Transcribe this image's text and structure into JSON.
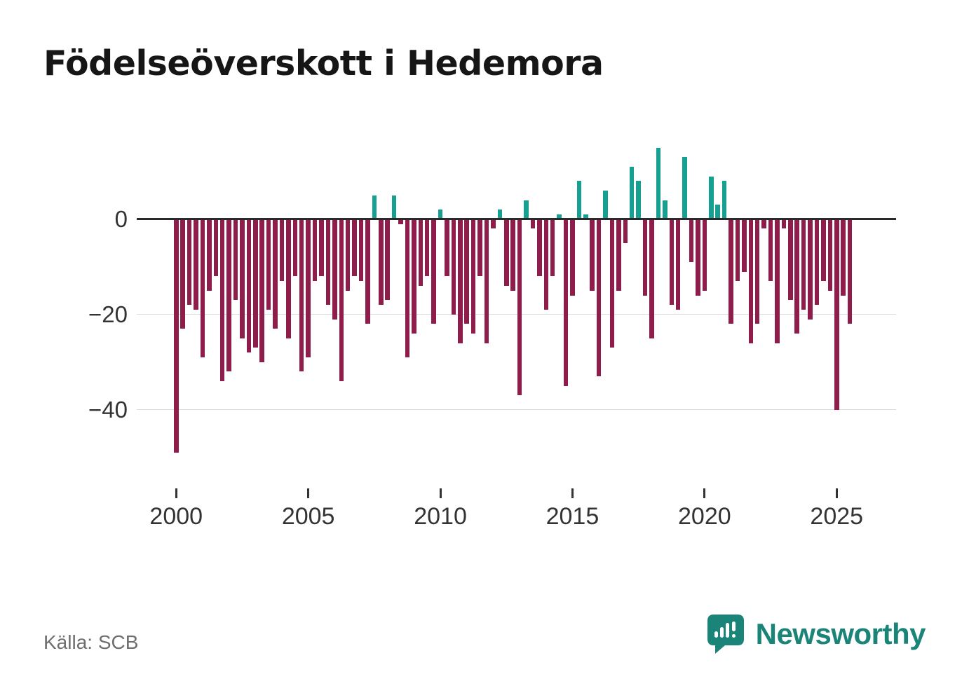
{
  "title": "Födelseöverskott i Hedemora",
  "source": "Källa: SCB",
  "brand": {
    "name": "Newsworthy",
    "color": "#1b8478"
  },
  "chart_data": {
    "type": "bar",
    "title": "Födelseöverskott i Hedemora",
    "frequency": "quarterly",
    "x_start_year": 2000,
    "x_start_quarter": 1,
    "values": [
      -49,
      -23,
      -18,
      -19,
      -29,
      -15,
      -12,
      -34,
      -32,
      -17,
      -25,
      -28,
      -27,
      -30,
      -19,
      -23,
      -13,
      -25,
      -12,
      -32,
      -29,
      -13,
      -12,
      -18,
      -21,
      -34,
      -15,
      -12,
      -13,
      -22,
      5,
      -18,
      -17,
      5,
      -1,
      -29,
      -24,
      -14,
      -12,
      -22,
      2,
      -12,
      -20,
      -26,
      -22,
      -24,
      -12,
      -26,
      -2,
      2,
      -14,
      -15,
      -37,
      4,
      -2,
      -12,
      -19,
      -12,
      1,
      -35,
      -16,
      8,
      1,
      -15,
      -33,
      6,
      -27,
      -15,
      -5,
      11,
      8,
      -16,
      -25,
      15,
      4,
      -18,
      -19,
      13,
      -9,
      -16,
      -15,
      9,
      3,
      8,
      -22,
      -13,
      -11,
      -26,
      -22,
      -2,
      -13,
      -26,
      -2,
      -17,
      -24,
      -19,
      -21,
      -18,
      -13,
      -15,
      -40,
      -16,
      -22
    ],
    "positive_color": "#16a091",
    "negative_color": "#8e1d4b",
    "zero_line_color": "#2a2a2a",
    "gridline_color": "#dcdcdc",
    "ylim": [
      -51.2,
      18.8
    ],
    "yticks": [
      0,
      -20,
      -40
    ],
    "ytick_labels": [
      "0",
      "−20",
      "−40"
    ],
    "xticks": [
      2000,
      2005,
      2010,
      2015,
      2020,
      2025
    ],
    "grid": "horizontal",
    "legend": "none",
    "xlabel": "",
    "ylabel": ""
  }
}
